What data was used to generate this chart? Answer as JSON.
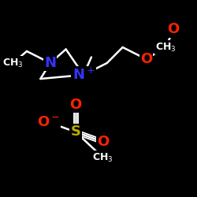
{
  "background_color": "#000000",
  "atom_colors": {
    "N": "#3333ff",
    "O": "#ff2200",
    "S": "#bbaa00",
    "C": "#ffffff"
  },
  "figsize": [
    2.5,
    2.5
  ],
  "dpi": 100,
  "line_color": "#ffffff",
  "line_width": 1.8,
  "font_size_atom": 13,
  "font_size_small": 10
}
